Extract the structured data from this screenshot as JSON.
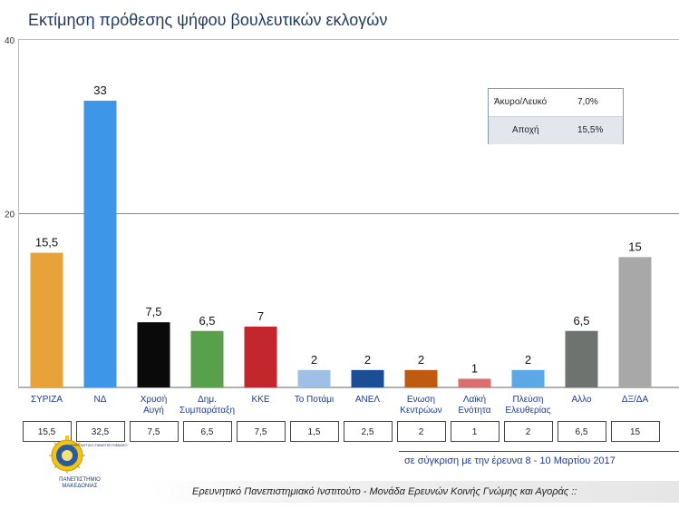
{
  "title": "Εκτίμηση πρόθεσης ψήφου βουλευτικών εκλογών",
  "chart_data": {
    "type": "bar",
    "categories": [
      "ΣΥΡΙΖΑ",
      "ΝΔ",
      "Χρυσή Αυγή",
      "Δημ. Συμπαράταξη",
      "ΚΚΕ",
      "Το Ποτάμι",
      "ΑΝΕΛ",
      "Ενωση Κεντρώων",
      "Λαϊκή Ενότητα",
      "Πλεύση Ελευθερίας",
      "Αλλο",
      "ΔΞ/ΔΑ"
    ],
    "category_lines": [
      [
        "ΣΥΡΙΖΑ"
      ],
      [
        "ΝΔ"
      ],
      [
        "Χρυσή",
        "Αυγή"
      ],
      [
        "Δημ.",
        "Συμπαράταξη"
      ],
      [
        "ΚΚΕ"
      ],
      [
        "Το Ποτάμι"
      ],
      [
        "ΑΝΕΛ"
      ],
      [
        "Ενωση",
        "Κεντρώων"
      ],
      [
        "Λαϊκή",
        "Ενότητα"
      ],
      [
        "Πλεύση",
        "Ελευθερίας"
      ],
      [
        "Αλλο"
      ],
      [
        "ΔΞ/ΔΑ"
      ]
    ],
    "values": [
      15.5,
      33,
      7.5,
      6.5,
      7,
      2,
      2,
      2,
      1,
      2,
      6.5,
      15
    ],
    "value_labels": [
      "15,5",
      "33",
      "7,5",
      "6,5",
      "7",
      "2",
      "2",
      "2",
      "1",
      "2",
      "6,5",
      "15"
    ],
    "colors": [
      "#e8a23a",
      "#3e96e8",
      "#0a0a0a",
      "#58a04c",
      "#c1272d",
      "#9ec0e6",
      "#1c4e96",
      "#bf5a12",
      "#d97070",
      "#5aa8e6",
      "#6e7370",
      "#a8a8a8"
    ],
    "ylim": [
      0,
      40
    ],
    "yticks": [
      20,
      40
    ],
    "previous_values": [
      "15,5",
      "32,5",
      "7,5",
      "6,5",
      "7,5",
      "1,5",
      "2,5",
      "2",
      "1",
      "2",
      "6,5",
      "15"
    ]
  },
  "info_table": [
    {
      "label": "Άκυρο/Λευκό",
      "value": "7,0%"
    },
    {
      "label": "Αποχή",
      "value": "15,5%"
    }
  ],
  "comparison_note": "σε σύγκριση με την έρευνα 8 - 10 Μαρτίου 2017",
  "footer": "Ερευνητικό Πανεπιστημιακό Ινστιτούτο - Μονάδα Ερευνών Κοινής Γνώμης και Αγοράς ::",
  "logo": {
    "text": "ΠΑΝΕΠΙΣΤΗΜΙΟ ΜΑΚΕΔΟΝΙΑΣ",
    "small_text": "ΕΡΕΥΝΗΤΙΚΟ ΠΑΝΕΠΙΣΤΗΜΙΑΚΟ"
  }
}
